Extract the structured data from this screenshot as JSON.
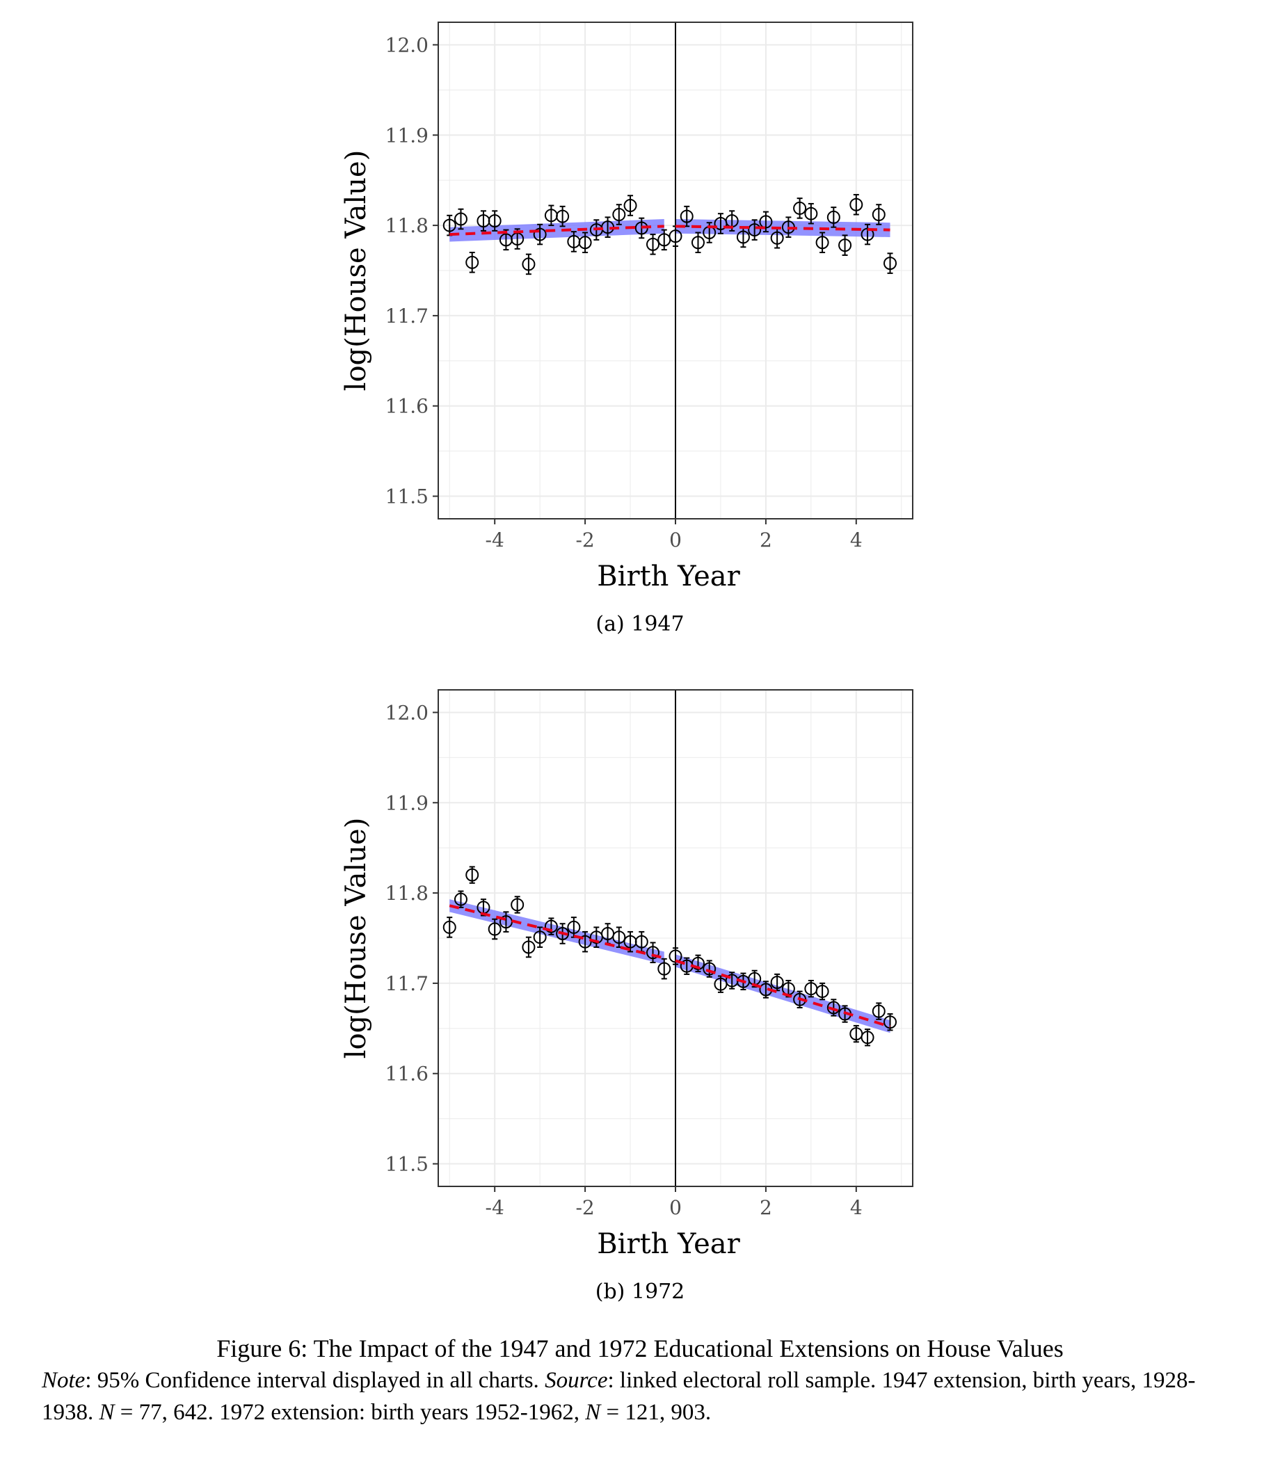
{
  "chart_data": [
    {
      "type": "scatter",
      "xlabel": "Birth Year",
      "ylabel": "log(House Value)",
      "xlim": [
        -5.25,
        5.25
      ],
      "ylim": [
        11.475,
        12.025
      ],
      "xticks": [
        -4,
        -2,
        0,
        2,
        4
      ],
      "yticks": [
        11.5,
        11.6,
        11.7,
        11.8,
        11.9,
        12.0
      ],
      "grid": true,
      "cutoff": 0,
      "caption": "(a) 1947",
      "points": [
        {
          "x": -5.0,
          "y": 11.8,
          "err": 0.011
        },
        {
          "x": -4.75,
          "y": 11.807,
          "err": 0.011
        },
        {
          "x": -4.5,
          "y": 11.759,
          "err": 0.011
        },
        {
          "x": -4.25,
          "y": 11.805,
          "err": 0.011
        },
        {
          "x": -4.0,
          "y": 11.805,
          "err": 0.011
        },
        {
          "x": -3.75,
          "y": 11.784,
          "err": 0.011
        },
        {
          "x": -3.5,
          "y": 11.785,
          "err": 0.011
        },
        {
          "x": -3.25,
          "y": 11.757,
          "err": 0.011
        },
        {
          "x": -3.0,
          "y": 11.79,
          "err": 0.011
        },
        {
          "x": -2.75,
          "y": 11.811,
          "err": 0.011
        },
        {
          "x": -2.5,
          "y": 11.81,
          "err": 0.011
        },
        {
          "x": -2.25,
          "y": 11.782,
          "err": 0.011
        },
        {
          "x": -2.0,
          "y": 11.781,
          "err": 0.011
        },
        {
          "x": -1.75,
          "y": 11.795,
          "err": 0.011
        },
        {
          "x": -1.5,
          "y": 11.798,
          "err": 0.011
        },
        {
          "x": -1.25,
          "y": 11.812,
          "err": 0.011
        },
        {
          "x": -1.0,
          "y": 11.822,
          "err": 0.011
        },
        {
          "x": -0.75,
          "y": 11.797,
          "err": 0.011
        },
        {
          "x": -0.5,
          "y": 11.779,
          "err": 0.011
        },
        {
          "x": -0.25,
          "y": 11.784,
          "err": 0.011
        },
        {
          "x": 0.0,
          "y": 11.788,
          "err": 0.011
        },
        {
          "x": 0.25,
          "y": 11.81,
          "err": 0.011
        },
        {
          "x": 0.5,
          "y": 11.781,
          "err": 0.011
        },
        {
          "x": 0.75,
          "y": 11.792,
          "err": 0.011
        },
        {
          "x": 1.0,
          "y": 11.802,
          "err": 0.011
        },
        {
          "x": 1.25,
          "y": 11.805,
          "err": 0.011
        },
        {
          "x": 1.5,
          "y": 11.787,
          "err": 0.011
        },
        {
          "x": 1.75,
          "y": 11.795,
          "err": 0.011
        },
        {
          "x": 2.0,
          "y": 11.804,
          "err": 0.011
        },
        {
          "x": 2.25,
          "y": 11.786,
          "err": 0.011
        },
        {
          "x": 2.5,
          "y": 11.798,
          "err": 0.011
        },
        {
          "x": 2.75,
          "y": 11.819,
          "err": 0.011
        },
        {
          "x": 3.0,
          "y": 11.813,
          "err": 0.011
        },
        {
          "x": 3.25,
          "y": 11.781,
          "err": 0.011
        },
        {
          "x": 3.5,
          "y": 11.809,
          "err": 0.011
        },
        {
          "x": 3.75,
          "y": 11.778,
          "err": 0.011
        },
        {
          "x": 4.0,
          "y": 11.823,
          "err": 0.011
        },
        {
          "x": 4.25,
          "y": 11.79,
          "err": 0.011
        },
        {
          "x": 4.5,
          "y": 11.812,
          "err": 0.011
        },
        {
          "x": 4.75,
          "y": 11.758,
          "err": 0.011
        }
      ],
      "fit_left": {
        "x": [
          -5.0,
          -0.25
        ],
        "y": [
          11.79,
          11.799
        ],
        "ci": 0.008
      },
      "fit_right": {
        "x": [
          0.0,
          4.75
        ],
        "y": [
          11.799,
          11.795
        ],
        "ci": 0.008
      }
    },
    {
      "type": "scatter",
      "xlabel": "Birth Year",
      "ylabel": "log(House Value)",
      "xlim": [
        -5.25,
        5.25
      ],
      "ylim": [
        11.475,
        12.025
      ],
      "xticks": [
        -4,
        -2,
        0,
        2,
        4
      ],
      "yticks": [
        11.5,
        11.6,
        11.7,
        11.8,
        11.9,
        12.0
      ],
      "grid": true,
      "cutoff": 0,
      "caption": "(b) 1972",
      "points": [
        {
          "x": -5.0,
          "y": 11.762,
          "err": 0.011
        },
        {
          "x": -4.75,
          "y": 11.793,
          "err": 0.009
        },
        {
          "x": -4.5,
          "y": 11.82,
          "err": 0.009
        },
        {
          "x": -4.25,
          "y": 11.784,
          "err": 0.009
        },
        {
          "x": -4.0,
          "y": 11.76,
          "err": 0.011
        },
        {
          "x": -3.75,
          "y": 11.768,
          "err": 0.011
        },
        {
          "x": -3.5,
          "y": 11.787,
          "err": 0.009
        },
        {
          "x": -3.25,
          "y": 11.74,
          "err": 0.011
        },
        {
          "x": -3.0,
          "y": 11.751,
          "err": 0.011
        },
        {
          "x": -2.75,
          "y": 11.763,
          "err": 0.009
        },
        {
          "x": -2.5,
          "y": 11.755,
          "err": 0.011
        },
        {
          "x": -2.25,
          "y": 11.762,
          "err": 0.011
        },
        {
          "x": -2.0,
          "y": 11.746,
          "err": 0.011
        },
        {
          "x": -1.75,
          "y": 11.751,
          "err": 0.011
        },
        {
          "x": -1.5,
          "y": 11.755,
          "err": 0.011
        },
        {
          "x": -1.25,
          "y": 11.751,
          "err": 0.011
        },
        {
          "x": -1.0,
          "y": 11.746,
          "err": 0.011
        },
        {
          "x": -0.75,
          "y": 11.746,
          "err": 0.011
        },
        {
          "x": -0.5,
          "y": 11.734,
          "err": 0.011
        },
        {
          "x": -0.25,
          "y": 11.716,
          "err": 0.011
        },
        {
          "x": 0.0,
          "y": 11.73,
          "err": 0.009
        },
        {
          "x": 0.25,
          "y": 11.719,
          "err": 0.009
        },
        {
          "x": 0.5,
          "y": 11.722,
          "err": 0.009
        },
        {
          "x": 0.75,
          "y": 11.716,
          "err": 0.009
        },
        {
          "x": 1.0,
          "y": 11.699,
          "err": 0.009
        },
        {
          "x": 1.25,
          "y": 11.703,
          "err": 0.009
        },
        {
          "x": 1.5,
          "y": 11.702,
          "err": 0.009
        },
        {
          "x": 1.75,
          "y": 11.705,
          "err": 0.009
        },
        {
          "x": 2.0,
          "y": 11.693,
          "err": 0.009
        },
        {
          "x": 2.25,
          "y": 11.701,
          "err": 0.009
        },
        {
          "x": 2.5,
          "y": 11.694,
          "err": 0.009
        },
        {
          "x": 2.75,
          "y": 11.682,
          "err": 0.009
        },
        {
          "x": 3.0,
          "y": 11.694,
          "err": 0.009
        },
        {
          "x": 3.25,
          "y": 11.691,
          "err": 0.009
        },
        {
          "x": 3.5,
          "y": 11.673,
          "err": 0.009
        },
        {
          "x": 3.75,
          "y": 11.666,
          "err": 0.009
        },
        {
          "x": 4.0,
          "y": 11.644,
          "err": 0.009
        },
        {
          "x": 4.25,
          "y": 11.64,
          "err": 0.009
        },
        {
          "x": 4.5,
          "y": 11.669,
          "err": 0.009
        },
        {
          "x": 4.75,
          "y": 11.657,
          "err": 0.009
        }
      ],
      "fit_left": {
        "x": [
          -5.0,
          -0.25
        ],
        "y": [
          11.786,
          11.728
        ],
        "ci": 0.007
      },
      "fit_right": {
        "x": [
          0.0,
          4.75
        ],
        "y": [
          11.725,
          11.652
        ],
        "ci": 0.007
      }
    }
  ],
  "figure": {
    "title": "Figure 6: The Impact of the 1947 and 1972 Educational Extensions on House Values",
    "note_label": "Note",
    "note_text_1": ": 95% Confidence interval displayed in all charts. ",
    "source_label": "Source",
    "note_text_2": ": linked electoral roll sample. 1947 extension, birth years, 1928-1938. ",
    "n_symbol_1": "N",
    "n_value_1": " = 77, 642. 1972 extension: birth years 1952-1962, ",
    "n_symbol_2": "N",
    "n_value_2": " = 121, 903."
  },
  "colors": {
    "ci_band": "#8080ff",
    "fit_line": "#e8001c",
    "grid": "#ebebeb",
    "panel_border": "#333333",
    "tick_text": "#4d4d4d"
  }
}
